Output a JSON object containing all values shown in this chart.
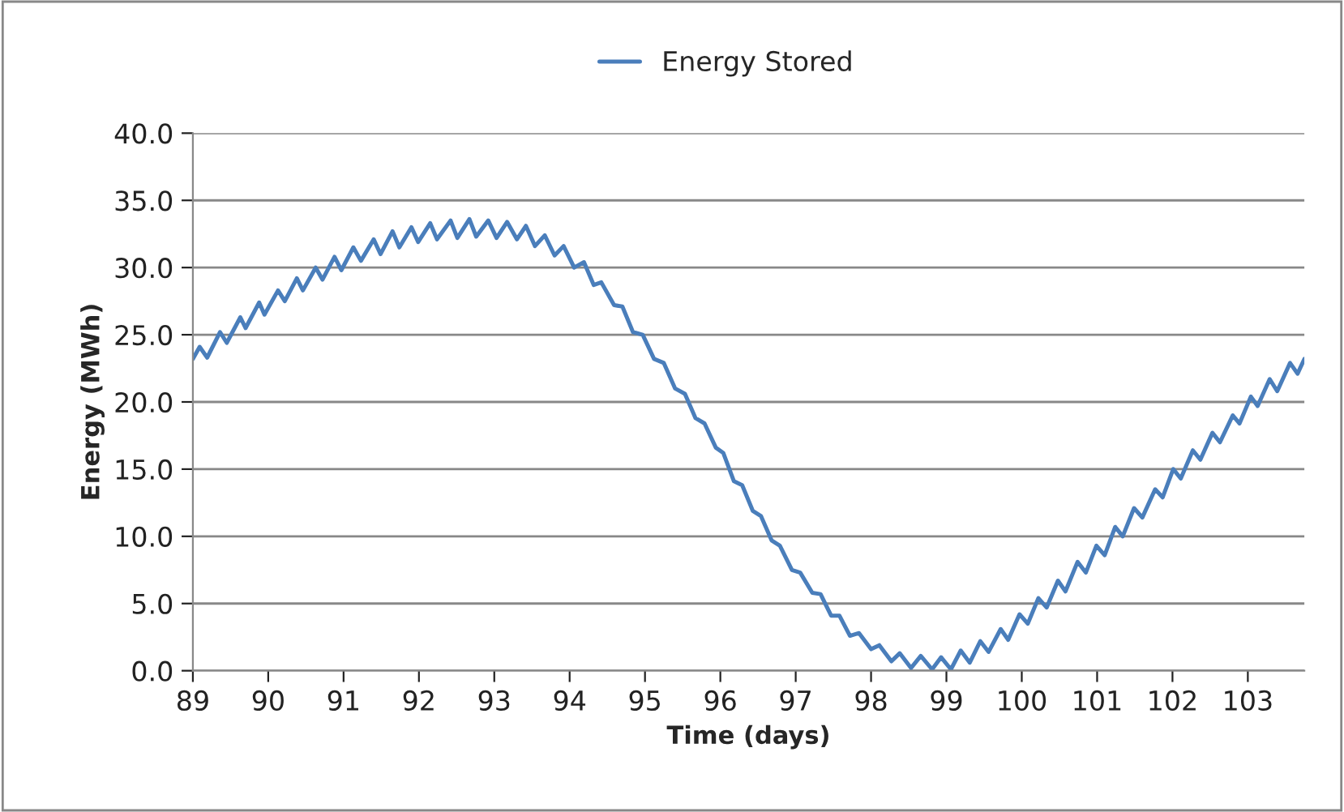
{
  "chart_data": {
    "type": "line",
    "xlabel": "Time (days)",
    "ylabel": "Energy (MWh)",
    "x": [
      89.0,
      89.09,
      89.19,
      89.36,
      89.45,
      89.63,
      89.7,
      89.88,
      89.95,
      90.13,
      90.22,
      90.38,
      90.46,
      90.63,
      90.72,
      90.88,
      90.97,
      91.13,
      91.23,
      91.4,
      91.49,
      91.65,
      91.74,
      91.9,
      91.99,
      92.15,
      92.24,
      92.42,
      92.51,
      92.67,
      92.76,
      92.92,
      93.03,
      93.17,
      93.3,
      93.42,
      93.54,
      93.67,
      93.8,
      93.92,
      94.06,
      94.19,
      94.32,
      94.42,
      94.59,
      94.7,
      94.84,
      94.97,
      95.12,
      95.25,
      95.4,
      95.53,
      95.67,
      95.79,
      95.94,
      96.04,
      96.18,
      96.29,
      96.43,
      96.54,
      96.68,
      96.79,
      96.95,
      97.06,
      97.22,
      97.33,
      97.47,
      97.58,
      97.72,
      97.84,
      98.0,
      98.11,
      98.27,
      98.38,
      98.53,
      98.66,
      98.81,
      98.93,
      99.06,
      99.19,
      99.31,
      99.45,
      99.56,
      99.72,
      99.82,
      99.97,
      100.08,
      100.22,
      100.33,
      100.48,
      100.58,
      100.74,
      100.85,
      100.99,
      101.1,
      101.24,
      101.34,
      101.49,
      101.6,
      101.77,
      101.87,
      102.01,
      102.11,
      102.27,
      102.37,
      102.53,
      102.63,
      102.8,
      102.89,
      103.04,
      103.13,
      103.29,
      103.39,
      103.56,
      103.66,
      103.75
    ],
    "series": [
      {
        "name": "Energy Stored",
        "color": "#4a7ebb",
        "values": [
          23.2,
          24.1,
          23.3,
          25.2,
          24.4,
          26.3,
          25.5,
          27.4,
          26.5,
          28.3,
          27.5,
          29.2,
          28.3,
          30.0,
          29.1,
          30.8,
          29.8,
          31.5,
          30.5,
          32.1,
          31.0,
          32.7,
          31.5,
          33.0,
          31.9,
          33.3,
          32.1,
          33.5,
          32.2,
          33.6,
          32.3,
          33.5,
          32.2,
          33.4,
          32.1,
          33.1,
          31.6,
          32.4,
          30.9,
          31.6,
          30.0,
          30.4,
          28.7,
          28.9,
          27.2,
          27.1,
          25.2,
          25.0,
          23.2,
          22.9,
          21.0,
          20.6,
          18.8,
          18.4,
          16.6,
          16.2,
          14.1,
          13.8,
          11.9,
          11.5,
          9.7,
          9.3,
          7.5,
          7.3,
          5.8,
          5.7,
          4.1,
          4.1,
          2.6,
          2.8,
          1.6,
          1.9,
          0.7,
          1.3,
          0.2,
          1.1,
          0.1,
          1.0,
          0.1,
          1.5,
          0.6,
          2.2,
          1.4,
          3.1,
          2.3,
          4.2,
          3.5,
          5.4,
          4.7,
          6.7,
          5.9,
          8.1,
          7.3,
          9.3,
          8.6,
          10.7,
          10.0,
          12.1,
          11.4,
          13.5,
          12.9,
          15.0,
          14.3,
          16.4,
          15.7,
          17.7,
          17.0,
          19.0,
          18.4,
          20.4,
          19.7,
          21.7,
          20.8,
          22.9,
          22.1,
          23.2
        ]
      }
    ],
    "xlim": [
      89,
      103.75
    ],
    "xticks": [
      89,
      90,
      91,
      92,
      93,
      94,
      95,
      96,
      97,
      98,
      99,
      100,
      101,
      102,
      103
    ],
    "ylim": [
      0,
      40
    ],
    "yticks": [
      {
        "value": 0,
        "label": "0.0"
      },
      {
        "value": 5,
        "label": "5.0"
      },
      {
        "value": 10,
        "label": "10.0"
      },
      {
        "value": 15,
        "label": "15.0"
      },
      {
        "value": 20,
        "label": "20.0"
      },
      {
        "value": 25,
        "label": "25.0"
      },
      {
        "value": 30,
        "label": "30.0"
      },
      {
        "value": 35,
        "label": "35.0"
      },
      {
        "value": 40,
        "label": "40.0"
      }
    ],
    "grid": "y",
    "legend": "top",
    "marker": "none",
    "line_style": "solid"
  }
}
